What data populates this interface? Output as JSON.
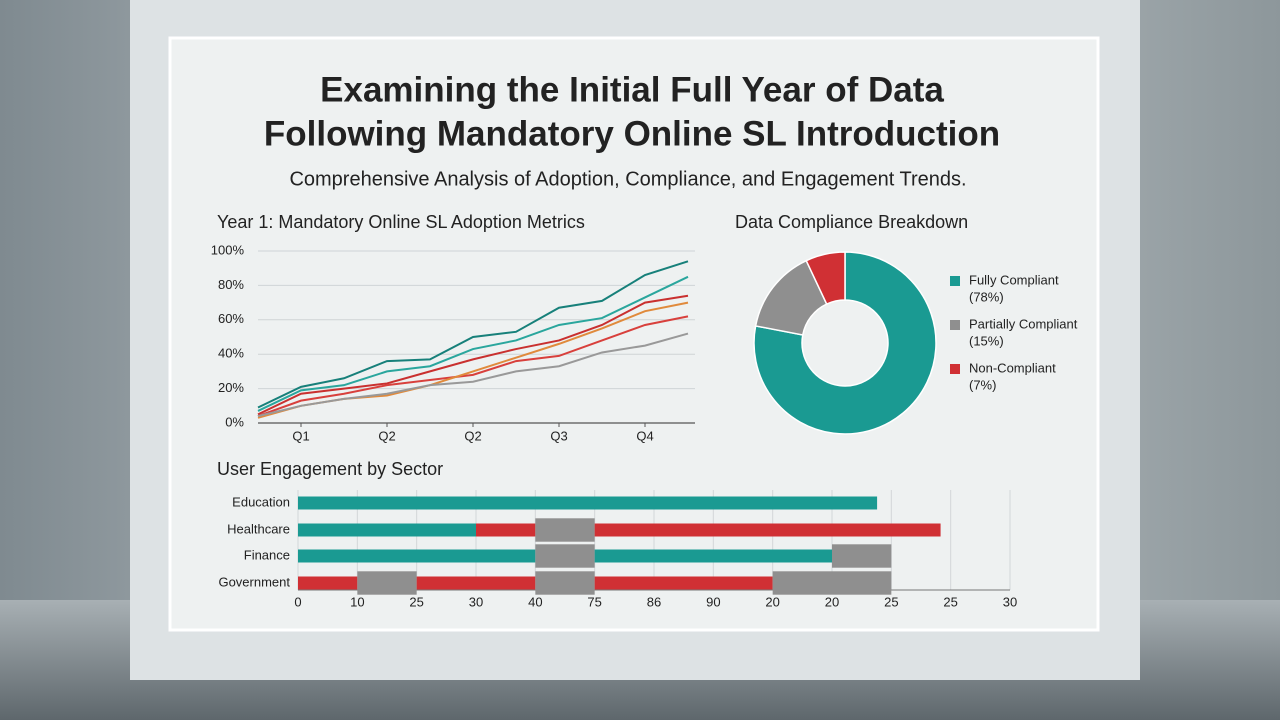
{
  "header": {
    "title": [
      "Examining the Initial Full Year of Data",
      "Following Mandatory Online SL Introduction"
    ],
    "subtitle": "Comprehensive Analysis of Adoption, Compliance, and Engagement Trends."
  },
  "chart_data": [
    {
      "type": "line",
      "title": "Year 1: Mandatory Online SL Adoption Metrics",
      "x": [
        0,
        1,
        2,
        3,
        4,
        5,
        6,
        7,
        8,
        9,
        10
      ],
      "xlim": [
        0,
        10
      ],
      "xticks": [
        {
          "value": 1,
          "label": "Q1"
        },
        {
          "value": 3,
          "label": "Q2"
        },
        {
          "value": 5,
          "label": "Q2"
        },
        {
          "value": 7,
          "label": "Q3"
        },
        {
          "value": 9,
          "label": "Q4"
        }
      ],
      "ylim": [
        0,
        100
      ],
      "yticks": [
        {
          "value": 0,
          "label": "0%"
        },
        {
          "value": 20,
          "label": "20%"
        },
        {
          "value": 40,
          "label": "40%"
        },
        {
          "value": 60,
          "label": "60%"
        },
        {
          "value": 80,
          "label": "80%"
        },
        {
          "value": 100,
          "label": "100%"
        }
      ],
      "grid": true,
      "series": [
        {
          "color": "#17807a",
          "values": [
            9,
            21,
            26,
            36,
            37,
            50,
            53,
            67,
            71,
            86,
            94
          ]
        },
        {
          "color": "#2aa69d",
          "values": [
            7,
            19,
            22,
            30,
            33,
            43,
            48,
            57,
            61,
            73,
            85
          ]
        },
        {
          "color": "#c9302f",
          "values": [
            5,
            17,
            20,
            23,
            30,
            37,
            43,
            48,
            57,
            70,
            74
          ]
        },
        {
          "color": "#d8403c",
          "values": [
            4,
            13,
            17,
            22,
            25,
            28,
            36,
            39,
            48,
            57,
            62
          ]
        },
        {
          "color": "#e08a3c",
          "values": [
            3,
            10,
            14,
            16,
            22,
            30,
            38,
            46,
            55,
            65,
            70
          ]
        },
        {
          "color": "#999999",
          "values": [
            4,
            10,
            14,
            17,
            22,
            24,
            30,
            33,
            41,
            45,
            52
          ]
        }
      ]
    },
    {
      "type": "pie",
      "title": "Data Compliance Breakdown",
      "categories": [
        "Fully Compliant",
        "Partially Compliant",
        "Non-Compliant"
      ],
      "values": [
        78,
        15,
        7
      ],
      "value_labels": [
        "(78%)",
        "(15%)",
        "(7%)"
      ],
      "colors": [
        "#1a9a92",
        "#8f8f8f",
        "#d03034"
      ],
      "donut": true
    },
    {
      "type": "stacked-barh",
      "title": "User Engagement by Sector",
      "categories": [
        "Education",
        "Healthcare",
        "Finance",
        "Government"
      ],
      "xlim": [
        0,
        12
      ],
      "xtick_labels": [
        "0",
        "10",
        "25",
        "30",
        "40",
        "75",
        "86",
        "90",
        "20",
        "20",
        "25",
        "25",
        "30"
      ],
      "rows": [
        [
          {
            "color": "#1a9a92",
            "value": 9.76
          }
        ],
        [
          {
            "color": "#1a9a92",
            "value": 3
          },
          {
            "color": "#d03034",
            "value": 1
          },
          {
            "color": "#8f8f8f",
            "value": 1
          },
          {
            "color": "#d03034",
            "value": 5.83
          }
        ],
        [
          {
            "color": "#1a9a92",
            "value": 4
          },
          {
            "color": "#8f8f8f",
            "value": 1
          },
          {
            "color": "#1a9a92",
            "value": 4
          },
          {
            "color": "#8f8f8f",
            "value": 1
          }
        ],
        [
          {
            "color": "#d03034",
            "value": 1
          },
          {
            "color": "#8f8f8f",
            "value": 1
          },
          {
            "color": "#d03034",
            "value": 2
          },
          {
            "color": "#8f8f8f",
            "value": 1
          },
          {
            "color": "#d03034",
            "value": 3
          },
          {
            "color": "#8f8f8f",
            "value": 1
          },
          {
            "color": "#8f8f8f",
            "value": 1
          }
        ]
      ]
    }
  ]
}
